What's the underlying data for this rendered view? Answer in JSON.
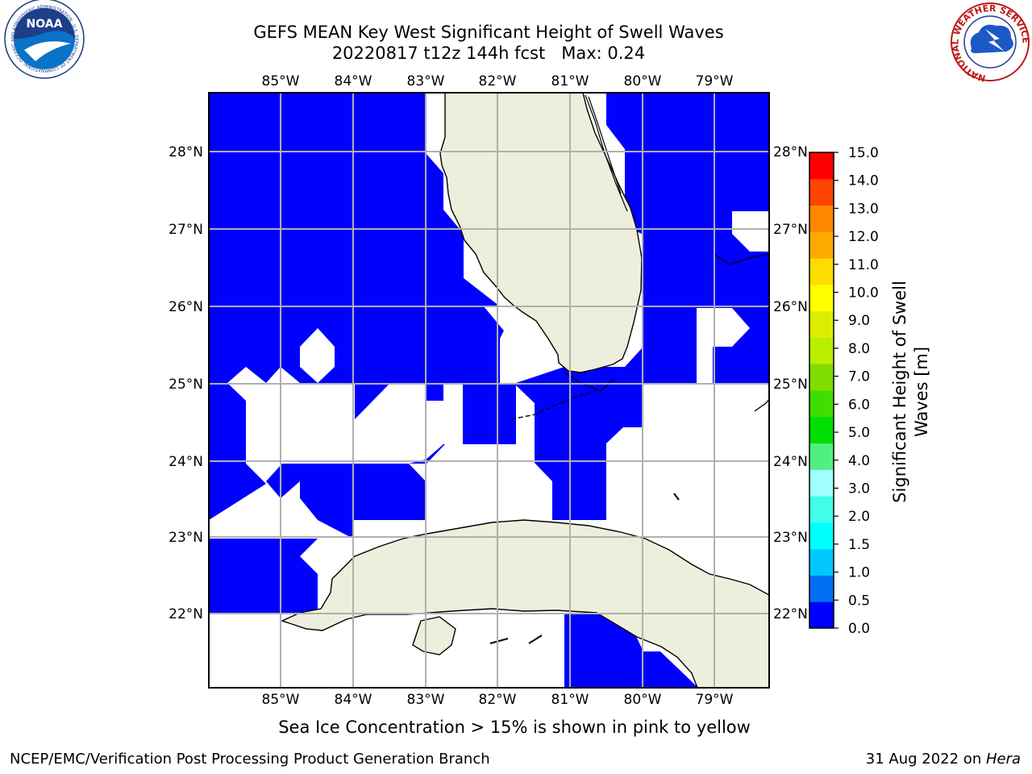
{
  "title": {
    "line1": "GEFS MEAN Key West Significant Height of Swell Waves",
    "line2": "20220817 t12z 144h fcst   Max: 0.24"
  },
  "map": {
    "lon_labels": [
      "85°W",
      "84°W",
      "83°W",
      "82°W",
      "81°W",
      "80°W",
      "79°W"
    ],
    "lat_labels": [
      "28°N",
      "27°N",
      "26°N",
      "25°N",
      "24°N",
      "23°N",
      "22°N"
    ],
    "colors": {
      "ocean_fill": "#0000ff",
      "no_data": "#ffffff",
      "land": "#eeeedc",
      "grid": "#b0b0b0"
    }
  },
  "colorbar": {
    "label_line1": "Significant Height of Swell",
    "label_line2": "Waves [m]",
    "ticks": [
      "0.0",
      "0.5",
      "1.0",
      "1.5",
      "2.0",
      "3.0",
      "4.0",
      "5.0",
      "6.0",
      "7.0",
      "8.0",
      "9.0",
      "10.0",
      "11.0",
      "12.0",
      "13.0",
      "14.0",
      "15.0"
    ],
    "colors": [
      "#0000ff",
      "#0070f0",
      "#00c8ff",
      "#00ffff",
      "#40ffe6",
      "#a0ffff",
      "#50f080",
      "#00dd00",
      "#40dd00",
      "#80dd00",
      "#bbee00",
      "#ddee00",
      "#ffff00",
      "#ffdd00",
      "#ffaa00",
      "#ff8800",
      "#ff4400",
      "#ff0000"
    ]
  },
  "caption": "Sea Ice Concentration > 15% is shown in pink to yellow",
  "footer": {
    "left": "NCEP/EMC/Verification Post Processing Product Generation Branch",
    "right_date": "31 Aug 2022 on ",
    "right_host": "Hera"
  },
  "logos": {
    "noaa_text": "NOAA",
    "noaa_ring": "NATIONAL OCEANIC AND ATMOSPHERIC ADMINISTRATION · U.S. DEPARTMENT OF COMMERCE",
    "nws_ring": "NATIONAL WEATHER SERVICE"
  }
}
